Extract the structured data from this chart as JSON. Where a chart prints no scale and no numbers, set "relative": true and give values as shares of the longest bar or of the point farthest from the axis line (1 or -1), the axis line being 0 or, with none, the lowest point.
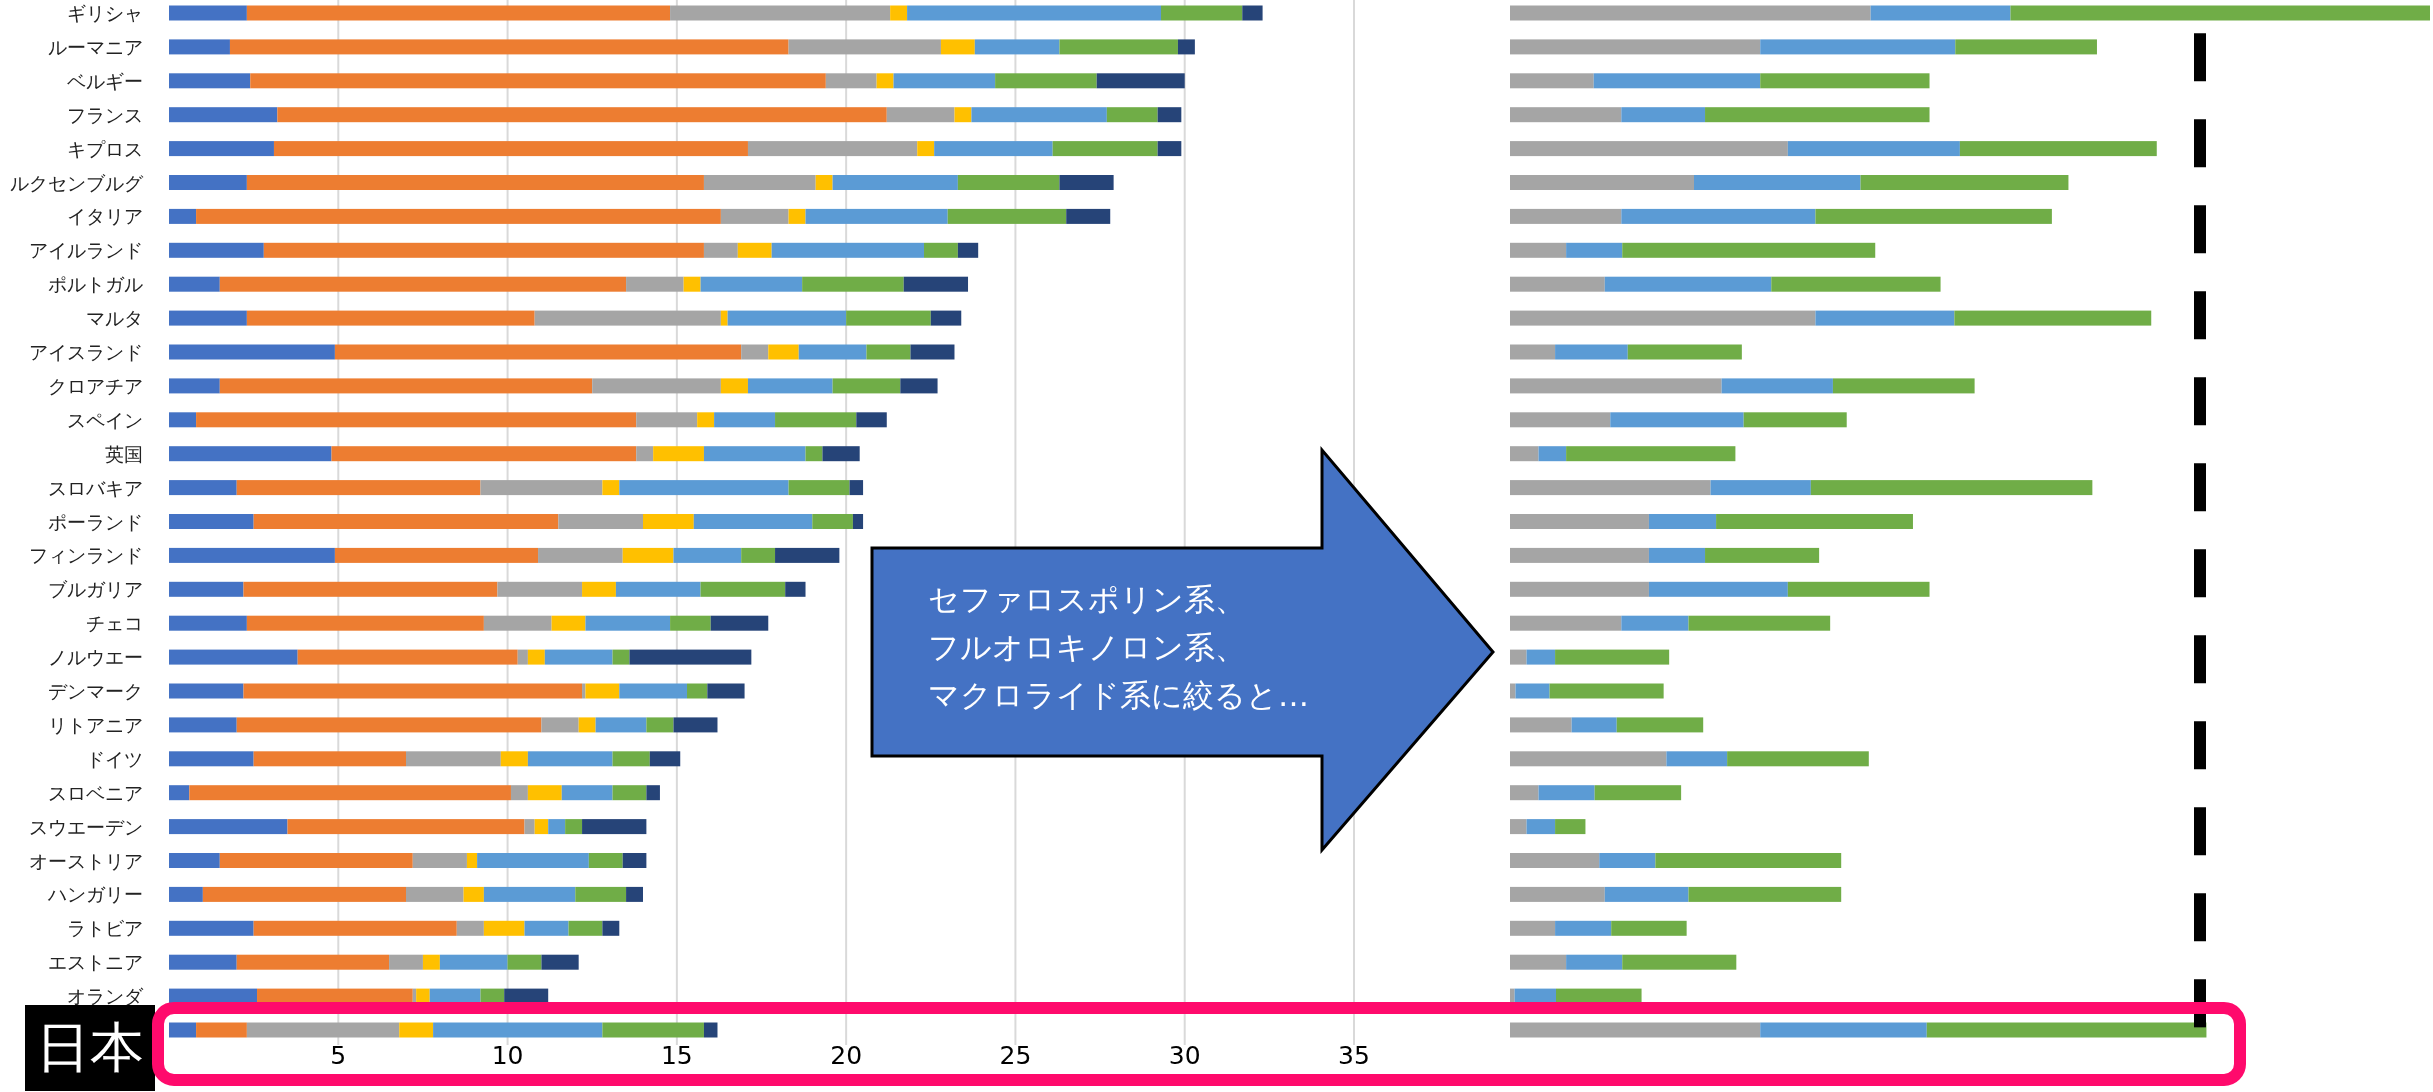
{
  "chart_data": [
    {
      "type": "bar",
      "orientation": "horizontal",
      "stacked": true,
      "grid": "x",
      "xlim": [
        0,
        35
      ],
      "xticks": [
        5,
        10,
        15,
        20,
        25,
        30,
        35
      ],
      "categories": [
        "ギリシャ",
        "ルーマニア",
        "ベルギー",
        "フランス",
        "キプロス",
        "ルクセンブルグ",
        "イタリア",
        "アイルランド",
        "ポルトガル",
        "マルタ",
        "アイスランド",
        "クロアチア",
        "スペイン",
        "英国",
        "スロバキア",
        "ポーランド",
        "フィンランド",
        "ブルガリア",
        "チェコ",
        "ノルウエー",
        "デンマーク",
        "リトアニア",
        "ドイツ",
        "スロベニア",
        "スウエーデン",
        "オーストリア",
        "ハンガリー",
        "ラトビア",
        "エストニア",
        "オランダ",
        "日本"
      ],
      "series": [
        {
          "color": "#4472c4",
          "values": [
            2.3,
            1.8,
            2.4,
            3.2,
            3.1,
            2.3,
            0.8,
            2.8,
            1.5,
            2.3,
            4.9,
            1.5,
            0.8,
            4.8,
            2.0,
            2.5,
            4.9,
            2.2,
            2.3,
            3.8,
            2.2,
            2.0,
            2.5,
            0.6,
            3.5,
            1.5,
            1.0,
            2.5,
            2.0,
            2.6,
            0.8
          ]
        },
        {
          "color": "#ed7d31",
          "values": [
            12.5,
            16.5,
            17.0,
            18.0,
            14.0,
            13.5,
            15.5,
            13.0,
            12.0,
            8.5,
            12.0,
            11.0,
            13.0,
            9.0,
            7.2,
            9.0,
            6.0,
            7.5,
            7.0,
            6.5,
            10.0,
            9.0,
            4.5,
            9.5,
            7.0,
            5.7,
            6.0,
            6.0,
            4.5,
            4.6,
            1.5
          ]
        },
        {
          "color": "#a5a5a5",
          "values": [
            6.5,
            4.5,
            1.5,
            2.0,
            5.0,
            3.3,
            2.0,
            1.0,
            1.7,
            5.5,
            0.8,
            3.8,
            1.8,
            0.5,
            3.6,
            2.5,
            2.5,
            2.5,
            2.0,
            0.3,
            0.1,
            1.1,
            2.8,
            0.5,
            0.3,
            1.6,
            1.7,
            0.8,
            1.0,
            0.1,
            4.5
          ]
        },
        {
          "color": "#ffc000",
          "values": [
            0.5,
            1.0,
            0.5,
            0.5,
            0.5,
            0.5,
            0.5,
            1.0,
            0.5,
            0.2,
            0.9,
            0.8,
            0.5,
            1.5,
            0.5,
            1.5,
            1.5,
            1.0,
            1.0,
            0.5,
            1.0,
            0.5,
            0.8,
            1.0,
            0.4,
            0.3,
            0.6,
            1.2,
            0.5,
            0.4,
            1.0
          ]
        },
        {
          "color": "#5b9bd5",
          "values": [
            7.5,
            2.5,
            3.0,
            4.0,
            3.5,
            3.7,
            4.2,
            4.5,
            3.0,
            3.5,
            2.0,
            2.5,
            1.8,
            3.0,
            5.0,
            3.5,
            2.0,
            2.5,
            2.5,
            2.0,
            2.0,
            1.5,
            2.5,
            1.5,
            0.5,
            3.3,
            2.7,
            1.3,
            2.0,
            1.5,
            5.0
          ]
        },
        {
          "color": "#70ad47",
          "values": [
            2.4,
            3.5,
            3.0,
            1.5,
            3.1,
            3.0,
            3.5,
            1.0,
            3.0,
            2.5,
            1.3,
            2.0,
            2.4,
            0.5,
            1.8,
            1.2,
            1.0,
            2.5,
            1.2,
            0.5,
            0.6,
            0.8,
            1.1,
            1.0,
            0.5,
            1.0,
            1.5,
            1.0,
            1.0,
            0.7,
            3.0
          ]
        },
        {
          "color": "#264478",
          "values": [
            0.6,
            0.5,
            2.6,
            0.7,
            0.7,
            1.6,
            1.3,
            0.6,
            1.9,
            0.9,
            1.3,
            1.1,
            0.9,
            1.1,
            0.4,
            0.3,
            1.9,
            0.6,
            1.7,
            3.6,
            1.1,
            1.3,
            0.9,
            0.4,
            1.9,
            0.7,
            0.5,
            0.5,
            1.1,
            1.3,
            0.4
          ]
        }
      ],
      "annotations": [
        "セファロスポリン系、",
        "フルオロキノロン系、",
        "マクロライド系に絞ると…"
      ]
    },
    {
      "type": "bar",
      "orientation": "horizontal",
      "stacked": true,
      "relative": true,
      "categories": [
        null,
        null,
        null,
        null,
        null,
        null,
        null,
        null,
        null,
        null,
        null,
        null,
        null,
        null,
        null,
        null,
        null,
        null,
        null,
        null,
        null,
        null,
        null,
        null,
        null,
        null,
        null,
        null,
        null,
        null,
        null
      ],
      "series": [
        {
          "color": "#a5a5a5",
          "values": [
            0.392,
            0.272,
            0.091,
            0.121,
            0.302,
            0.2,
            0.121,
            0.061,
            0.103,
            0.332,
            0.049,
            0.23,
            0.109,
            0.031,
            0.218,
            0.151,
            0.151,
            0.151,
            0.121,
            0.018,
            0.006,
            0.067,
            0.17,
            0.031,
            0.018,
            0.097,
            0.103,
            0.049,
            0.061,
            0.005,
            0.272
          ]
        },
        {
          "color": "#5b9bd5",
          "values": [
            0.152,
            0.212,
            0.181,
            0.091,
            0.187,
            0.181,
            0.211,
            0.061,
            0.181,
            0.151,
            0.079,
            0.121,
            0.145,
            0.03,
            0.109,
            0.073,
            0.061,
            0.151,
            0.073,
            0.031,
            0.037,
            0.049,
            0.066,
            0.061,
            0.031,
            0.061,
            0.091,
            0.061,
            0.061,
            0.045,
            0.181
          ]
        },
        {
          "color": "#70ad47",
          "values": [
            0.456,
            0.154,
            0.184,
            0.244,
            0.214,
            0.226,
            0.257,
            0.275,
            0.184,
            0.214,
            0.124,
            0.154,
            0.112,
            0.184,
            0.306,
            0.214,
            0.124,
            0.154,
            0.154,
            0.124,
            0.124,
            0.094,
            0.154,
            0.094,
            0.033,
            0.202,
            0.166,
            0.082,
            0.124,
            0.093,
            0.304
          ]
        }
      ],
      "ref_lines": [
        {
          "axis": "x",
          "value": 0.75,
          "color": "#000000",
          "line_style": "dashed"
        }
      ]
    }
  ]
}
